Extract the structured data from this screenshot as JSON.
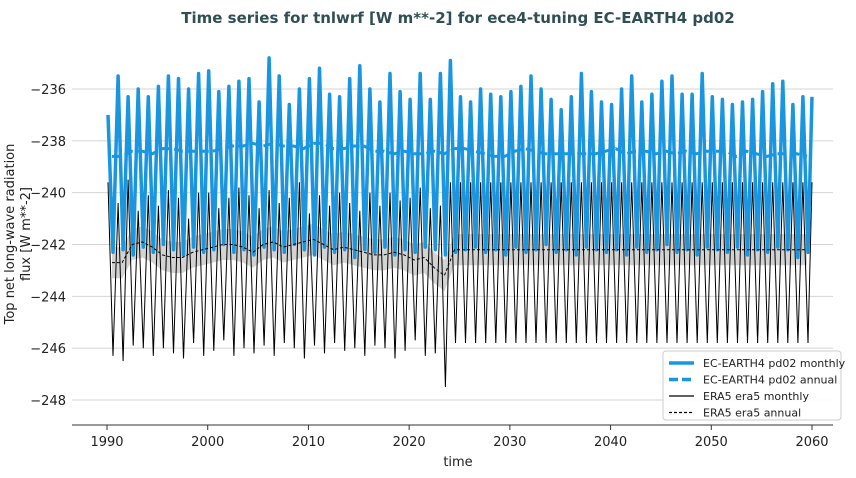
{
  "chart_data": {
    "type": "line",
    "title": "Time series for tnlwrf [W m**-2] for ece4-tuning EC-EARTH4 pd02",
    "xlabel": "time",
    "ylabel_lines": [
      "Top net long-wave radiation",
      "flux [W m**-2]"
    ],
    "xlim": [
      1987,
      2063
    ],
    "ylim": [
      -249,
      -234.5
    ],
    "xticks": [
      1990,
      2000,
      2010,
      2020,
      2030,
      2040,
      2050,
      2060
    ],
    "yticks": [
      -248,
      -246,
      -244,
      -242,
      -240,
      -238,
      -236
    ],
    "grid": "horizontal",
    "legend_position": "bottom-right",
    "colors": {
      "ec_earth": "#1a96e0",
      "era5": "#000000",
      "era5_band": "#c8c8c8",
      "title": "#2f4f55",
      "grid": "#d4d4d4"
    },
    "years": [
      1990,
      1991,
      1992,
      1993,
      1994,
      1995,
      1996,
      1997,
      1998,
      1999,
      2000,
      2001,
      2002,
      2003,
      2004,
      2005,
      2006,
      2007,
      2008,
      2009,
      2010,
      2011,
      2012,
      2013,
      2014,
      2015,
      2016,
      2017,
      2018,
      2019,
      2020,
      2021,
      2022,
      2023,
      2024,
      2025,
      2026,
      2027,
      2028,
      2029,
      2030,
      2031,
      2032,
      2033,
      2034,
      2035,
      2036,
      2037,
      2038,
      2039,
      2040,
      2041,
      2042,
      2043,
      2044,
      2045,
      2046,
      2047,
      2048,
      2049,
      2050,
      2051,
      2052,
      2053,
      2054,
      2055,
      2056,
      2057,
      2058,
      2059
    ],
    "series": [
      {
        "name": "EC-EARTH4 pd02 monthly",
        "style": "solid-thick",
        "color": "#1a96e0",
        "annual_max": [
          -237.0,
          -235.5,
          -236.3,
          -236.0,
          -236.3,
          -235.9,
          -235.5,
          -235.6,
          -236.0,
          -235.4,
          -235.3,
          -236.1,
          -235.9,
          -235.7,
          -235.6,
          -236.5,
          -234.8,
          -235.5,
          -236.6,
          -236.0,
          -235.6,
          -235.2,
          -236.2,
          -236.3,
          -235.6,
          -235.1,
          -236.0,
          -236.5,
          -235.4,
          -236.1,
          -236.4,
          -235.4,
          -236.4,
          -235.4,
          -234.9,
          -236.3,
          -236.5,
          -236.0,
          -236.2,
          -236.3,
          -236.1,
          -235.9,
          -235.5,
          -236.0,
          -236.4,
          -236.8,
          -236.3,
          -235.4,
          -236.1,
          -236.5,
          -236.6,
          -236.0,
          -235.5,
          -236.5,
          -236.2,
          -235.7,
          -235.5,
          -236.2,
          -236.2,
          -235.4,
          -236.3,
          -236.4,
          -236.6,
          -236.5,
          -236.4,
          -236.1,
          -235.8,
          -235.7,
          -236.6,
          -236.3
        ],
        "annual_min": [
          -242.3,
          -242.2,
          -242.4,
          -242.1,
          -242.3,
          -242.0,
          -242.2,
          -242.4,
          -242.1,
          -242.3,
          -242.2,
          -242.0,
          -242.3,
          -242.2,
          -242.4,
          -242.1,
          -242.2,
          -242.3,
          -242.0,
          -242.2,
          -242.4,
          -242.1,
          -242.3,
          -242.2,
          -242.5,
          -242.2,
          -242.3,
          -242.1,
          -242.4,
          -242.2,
          -242.3,
          -242.1,
          -242.2,
          -242.4,
          -242.3,
          -242.2,
          -242.1,
          -242.3,
          -242.2,
          -242.4,
          -242.1,
          -242.3,
          -242.2,
          -242.0,
          -242.3,
          -242.2,
          -242.4,
          -242.1,
          -242.2,
          -242.3,
          -242.2,
          -242.4,
          -242.1,
          -242.3,
          -242.2,
          -242.0,
          -242.3,
          -242.2,
          -242.4,
          -242.1,
          -242.2,
          -242.3,
          -242.1,
          -242.4,
          -242.2,
          -242.3,
          -242.1,
          -242.2,
          -242.5,
          -242.3
        ]
      },
      {
        "name": "EC-EARTH4 pd02 annual",
        "style": "dashed-thick",
        "color": "#1a96e0",
        "values": [
          -238.6,
          -238.6,
          -238.4,
          -238.4,
          -238.5,
          -238.3,
          -238.3,
          -238.4,
          -238.4,
          -238.4,
          -238.4,
          -238.3,
          -238.2,
          -238.2,
          -238.1,
          -238.2,
          -238.1,
          -238.2,
          -238.2,
          -238.3,
          -238.1,
          -238.1,
          -238.3,
          -238.3,
          -238.2,
          -238.2,
          -238.4,
          -238.4,
          -238.5,
          -238.4,
          -238.5,
          -238.5,
          -238.4,
          -238.5,
          -238.3,
          -238.3,
          -238.4,
          -238.5,
          -238.6,
          -238.6,
          -238.4,
          -238.3,
          -238.4,
          -238.5,
          -238.5,
          -238.5,
          -238.5,
          -238.5,
          -238.5,
          -238.4,
          -238.3,
          -238.5,
          -238.4,
          -238.4,
          -238.5,
          -238.4,
          -238.5,
          -238.4,
          -238.5,
          -238.4,
          -238.4,
          -238.4,
          -238.6,
          -238.4,
          -238.5,
          -238.6,
          -238.5,
          -238.5,
          -238.5,
          -238.6
        ]
      },
      {
        "name": "ERA5 era5 monthly",
        "style": "solid-thin",
        "color": "#000000",
        "annual_max": [
          -239.6,
          -240.4,
          -239.5,
          -240.7,
          -240.1,
          -240.5,
          -239.9,
          -240.2,
          -241.0,
          -240.0,
          -240.0,
          -240.6,
          -240.2,
          -239.8,
          -240.1,
          -240.6,
          -239.9,
          -240.4,
          -240.2,
          -239.6,
          -240.8,
          -240.1,
          -240.5,
          -240.0,
          -240.4,
          -240.7,
          -240.0,
          -240.5,
          -240.0,
          -240.3,
          -240.2,
          -239.8,
          -240.6,
          -240.5,
          -239.6,
          -239.6,
          -239.6,
          -239.6,
          -239.6,
          -239.6,
          -239.6,
          -239.6,
          -239.6,
          -239.6,
          -239.6,
          -239.6,
          -239.6,
          -239.6,
          -239.6,
          -239.6,
          -239.6,
          -239.6,
          -239.6,
          -239.6,
          -239.6,
          -239.6,
          -239.6,
          -239.6,
          -239.6,
          -239.6,
          -239.6,
          -239.6,
          -239.6,
          -239.6,
          -239.6,
          -239.6,
          -239.6,
          -239.6,
          -239.6,
          -239.6
        ],
        "annual_min": [
          -246.3,
          -246.5,
          -245.9,
          -246.0,
          -246.3,
          -246.0,
          -246.2,
          -246.4,
          -245.8,
          -246.3,
          -246.1,
          -245.7,
          -246.3,
          -246.0,
          -246.2,
          -245.9,
          -246.3,
          -245.8,
          -246.0,
          -246.4,
          -245.9,
          -246.2,
          -245.8,
          -246.1,
          -246.0,
          -246.3,
          -245.9,
          -246.0,
          -246.4,
          -246.1,
          -245.7,
          -246.3,
          -246.2,
          -247.5,
          -245.8,
          -245.8,
          -245.8,
          -245.8,
          -245.8,
          -245.8,
          -245.8,
          -245.8,
          -245.8,
          -245.8,
          -245.8,
          -245.8,
          -245.8,
          -245.8,
          -245.8,
          -245.8,
          -245.8,
          -245.8,
          -245.8,
          -245.8,
          -245.8,
          -245.8,
          -245.8,
          -245.8,
          -245.8,
          -245.8,
          -245.8,
          -245.8,
          -245.8,
          -245.8,
          -245.8,
          -245.8,
          -245.8,
          -245.8,
          -245.8,
          -245.8
        ]
      },
      {
        "name": "ERA5 era5 annual",
        "style": "dashed-thin",
        "color": "#000000",
        "values": [
          -242.7,
          -242.7,
          -242.0,
          -241.9,
          -242.1,
          -242.4,
          -242.5,
          -242.5,
          -242.3,
          -242.2,
          -242.1,
          -242.0,
          -242.0,
          -242.1,
          -242.3,
          -242.0,
          -241.9,
          -242.1,
          -242.0,
          -241.9,
          -241.8,
          -242.0,
          -242.2,
          -242.1,
          -242.2,
          -242.3,
          -242.4,
          -242.4,
          -242.3,
          -242.4,
          -242.6,
          -242.5,
          -242.9,
          -243.2,
          -242.2,
          -242.2,
          -242.2,
          -242.2,
          -242.2,
          -242.2,
          -242.2,
          -242.2,
          -242.2,
          -242.2,
          -242.2,
          -242.2,
          -242.2,
          -242.2,
          -242.2,
          -242.2,
          -242.2,
          -242.2,
          -242.2,
          -242.2,
          -242.2,
          -242.2,
          -242.2,
          -242.2,
          -242.2,
          -242.2,
          -242.2,
          -242.2,
          -242.2,
          -242.2,
          -242.2,
          -242.2,
          -242.2,
          -242.2,
          -242.2,
          -242.2
        ]
      }
    ]
  }
}
